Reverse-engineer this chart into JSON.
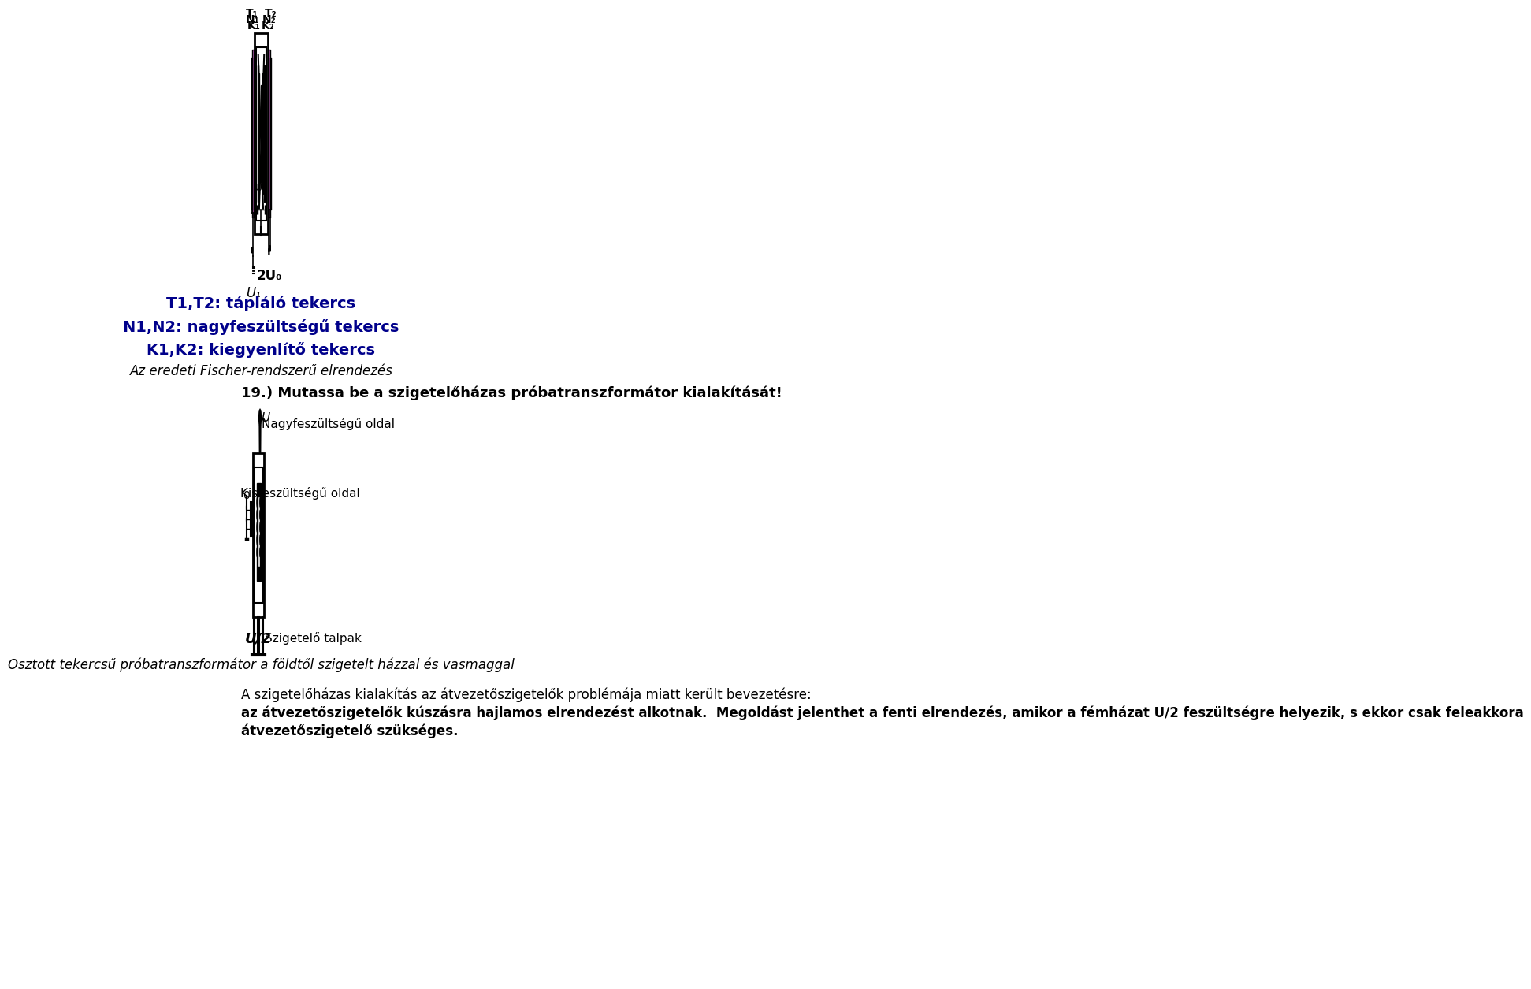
{
  "bg_color": "#ffffff",
  "text_color_blue": "#00008B",
  "coil_pink": "#DA70D6",
  "coil_cyan": "#7FFFD4",
  "coil_orange": "#FFA07A",
  "line1": "T1,T2: tápláló tekercs",
  "line2": "N1,N2: nagyfeszültségű tekercs",
  "line3": "K1,K2: kiegyenlítő tekercs",
  "caption1": "Az eredeti Fischer-rendszerű elrendezés",
  "question": "19.) Mutassa be a szigetelőházas próbatranszformátor kialakítását!",
  "label_nagy": "Nagyfeszültségű oldal",
  "label_kis": "Kisfeszültségű oldal",
  "label_szigetelo": "Szigetelő talpak",
  "caption2": "Osztott tekercsű próbatranszformátor a földtől szigetelt házzal és vasmaggal",
  "para_line1": "A szigetelőházas kialakítás az átvezetőszigetelők problémája miatt került bevezetésre:",
  "para_line2": "az átvezetőszigetelők kúszásra hajlamos elrendezést alkotnak.",
  "para_line3": "Megoldást jelenthet a fenti elrendezés, amikor a fémházat U/2 feszültségre helyezik, s ekkor csak feleakkora",
  "para_line4": "átvezetőszigetelő szükséges."
}
